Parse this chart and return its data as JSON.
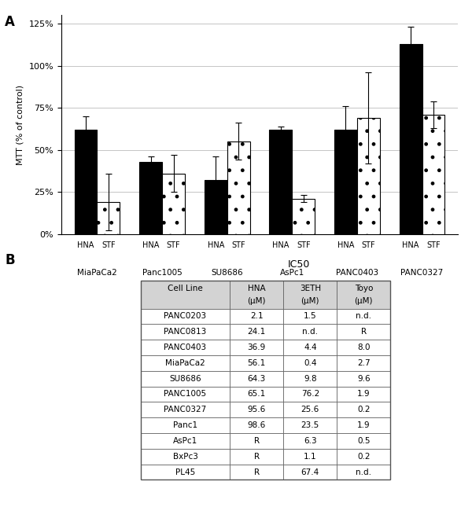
{
  "bar_groups": [
    "MiaPaCa2",
    "Panc1005",
    "SU8686",
    "AsPc1",
    "PANC0403",
    "PANC0327"
  ],
  "hna_values": [
    62,
    43,
    32,
    62,
    62,
    113
  ],
  "stf_values": [
    19,
    36,
    55,
    21,
    69,
    71
  ],
  "hna_errors": [
    8,
    3,
    14,
    2,
    14,
    10
  ],
  "stf_errors": [
    17,
    11,
    11,
    2,
    27,
    8
  ],
  "ylabel": "MTT (% of control)",
  "yticks": [
    0,
    25,
    50,
    75,
    100,
    125
  ],
  "yticklabels": [
    "0%",
    "25%",
    "50%",
    "75%",
    "100%",
    "125%"
  ],
  "ylim": [
    0,
    130
  ],
  "panel_a_label": "A",
  "panel_b_label": "B",
  "table_title": "IC50",
  "table_rows": [
    [
      "PANC0203",
      "2.1",
      "1.5",
      "n.d."
    ],
    [
      "PANC0813",
      "24.1",
      "n.d.",
      "R"
    ],
    [
      "PANC0403",
      "36.9",
      "4.4",
      "8.0"
    ],
    [
      "MiaPaCa2",
      "56.1",
      "0.4",
      "2.7"
    ],
    [
      "SU8686",
      "64.3",
      "9.8",
      "9.6"
    ],
    [
      "PANC1005",
      "65.1",
      "76.2",
      "1.9"
    ],
    [
      "PANC0327",
      "95.6",
      "25.6",
      "0.2"
    ],
    [
      "Panc1",
      "98.6",
      "23.5",
      "1.9"
    ],
    [
      "AsPc1",
      "R",
      "6.3",
      "0.5"
    ],
    [
      "BxPc3",
      "R",
      "1.1",
      "0.2"
    ],
    [
      "PL45",
      "R",
      "67.4",
      "n.d."
    ]
  ],
  "bar_width": 0.35,
  "solid_color": "#000000",
  "dotted_color": "#ffffff",
  "dotted_hatch": ".",
  "edge_color": "#000000",
  "grid_color": "#bbbbbb",
  "background_color": "#ffffff",
  "font_size": 8,
  "header_bg": "#d3d3d3",
  "cell_bg": "#ffffff",
  "line_color": "#555555"
}
